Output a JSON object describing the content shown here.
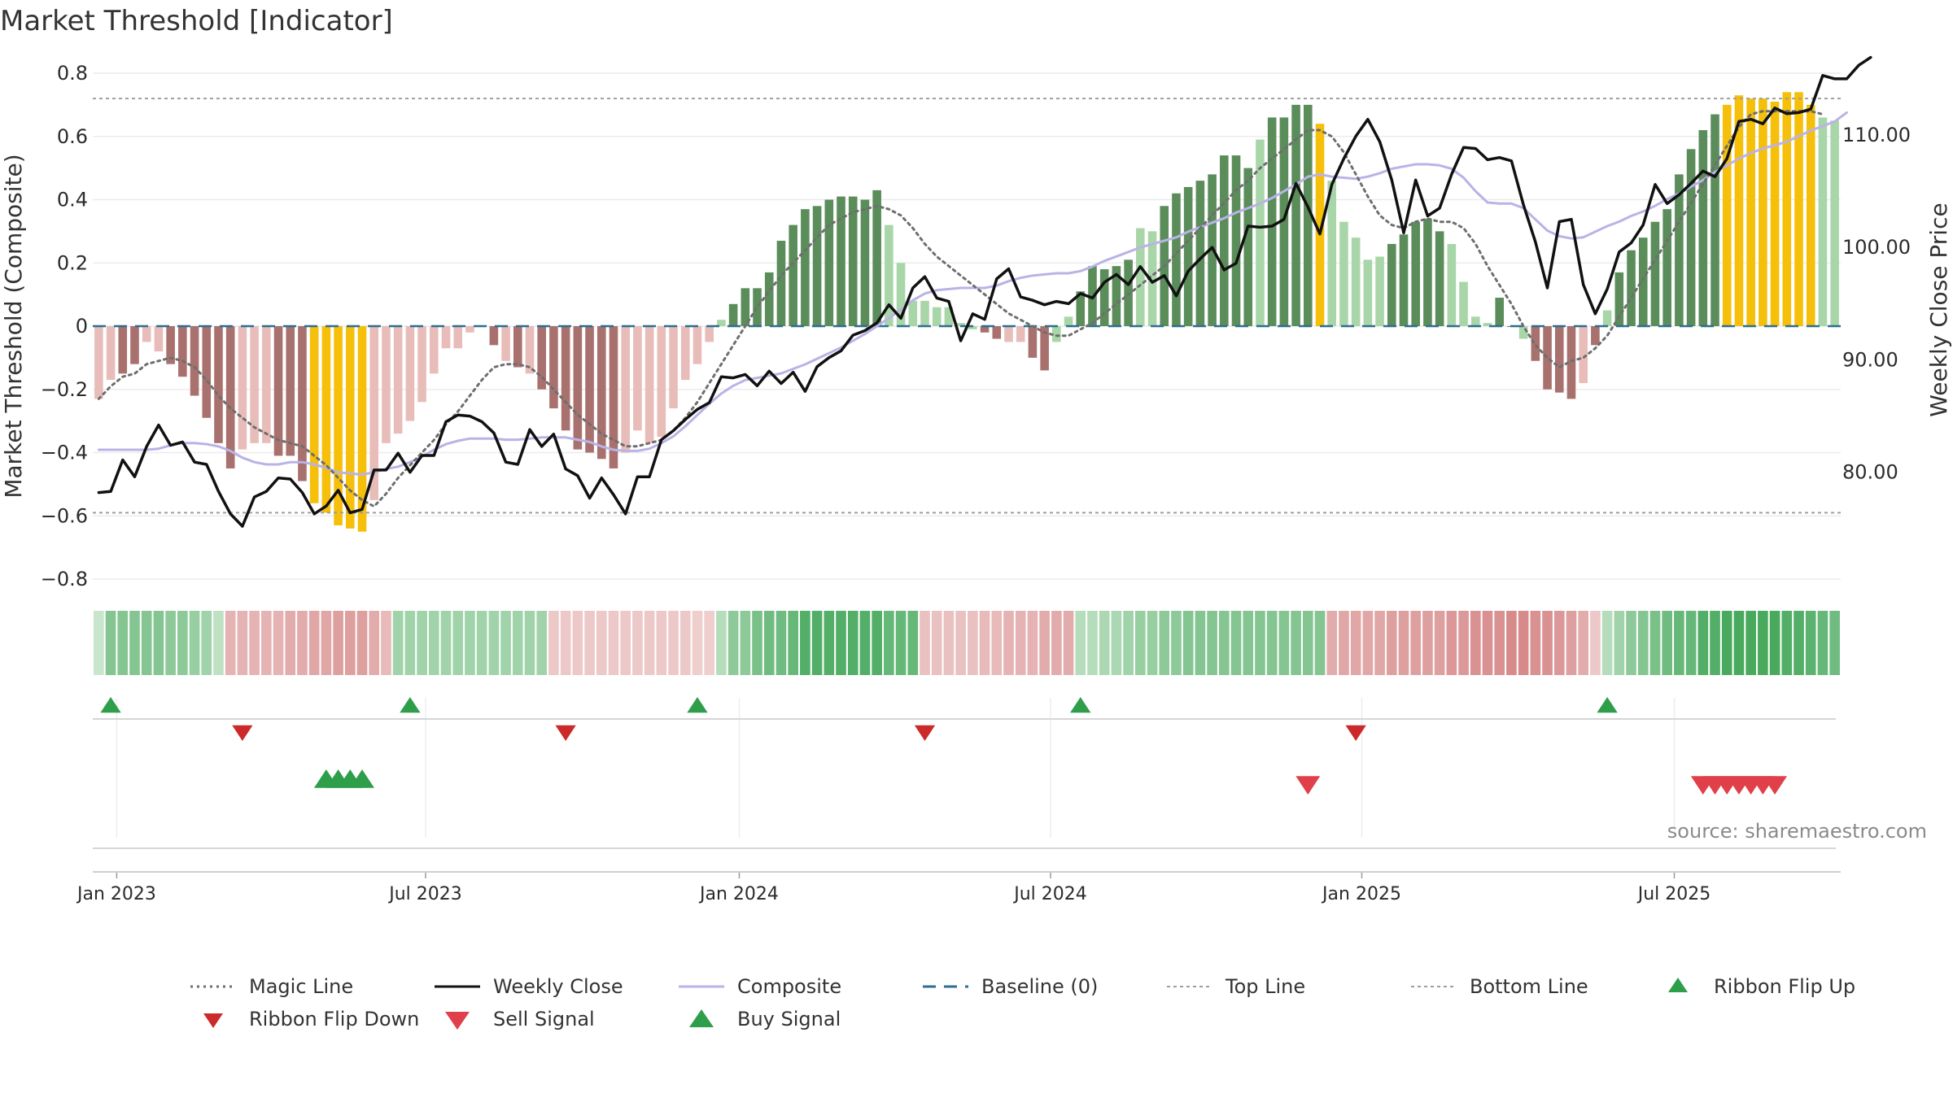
{
  "title": "Market Threshold [Indicator]",
  "source": "source: sharemaestro.com",
  "colors": {
    "magic": "#6e6e6e",
    "weekly_close": "#111111",
    "composite": "#b9b3e6",
    "baseline": "#2c6e8f",
    "top_line": "#9e9e9e",
    "bottom_line": "#9e9e9e",
    "pos_dark": "#5b8d5b",
    "pos_light": "#a9d6a9",
    "neg_dark": "#a8716e",
    "neg_light": "#e8bdb9",
    "extreme": "#f5bf0a",
    "flip_up": "#2e9e4a",
    "flip_down": "#cc2a2a",
    "sell": "#e0404a",
    "buy": "#2e9e4a"
  },
  "chart_data": {
    "type": "bar",
    "title": "Market Threshold [Indicator]",
    "ylabel_left": "Market Threshold (Composite)",
    "ylabel_right": "Weekly Close Price",
    "ylim_left": [
      -0.8,
      0.8
    ],
    "ylim_right": [
      70.5,
      115.5
    ],
    "left_ticks": [
      "0.8",
      "0.6",
      "0.4",
      "0.2",
      "0",
      "−0.2",
      "−0.4",
      "−0.6",
      "−0.8"
    ],
    "right_ticks": [
      "110.00",
      "100.00",
      "90.00",
      "80.00"
    ],
    "x_ticks": [
      "Jan 2023",
      "Jul 2023",
      "Jan 2024",
      "Jul 2024",
      "Jan 2025",
      "Jul 2025"
    ],
    "x_tick_weeks": [
      1.5,
      27.3,
      53.5,
      79.5,
      105.5,
      131.6
    ],
    "top_line": 0.72,
    "bottom_line": -0.59,
    "grid": true,
    "legend_position": "bottom",
    "composite_bars": [
      -0.23,
      -0.17,
      -0.15,
      -0.12,
      -0.05,
      -0.08,
      -0.12,
      -0.16,
      -0.22,
      -0.29,
      -0.37,
      -0.45,
      -0.39,
      -0.37,
      -0.37,
      -0.41,
      -0.41,
      -0.49,
      -0.56,
      -0.59,
      -0.63,
      -0.64,
      -0.65,
      -0.55,
      -0.37,
      -0.34,
      -0.3,
      -0.24,
      -0.15,
      -0.07,
      -0.07,
      -0.02,
      -0.0,
      -0.06,
      -0.11,
      -0.13,
      -0.15,
      -0.2,
      -0.26,
      -0.33,
      -0.39,
      -0.4,
      -0.42,
      -0.45,
      -0.4,
      -0.33,
      -0.37,
      -0.35,
      -0.26,
      -0.17,
      -0.12,
      -0.05,
      0.02,
      0.07,
      0.12,
      0.12,
      0.17,
      0.27,
      0.32,
      0.37,
      0.38,
      0.4,
      0.41,
      0.41,
      0.4,
      0.43,
      0.32,
      0.2,
      0.08,
      0.08,
      0.06,
      0.06,
      0.01,
      -0.01,
      -0.02,
      -0.04,
      -0.05,
      -0.05,
      -0.1,
      -0.14,
      -0.05,
      0.03,
      0.11,
      0.19,
      0.18,
      0.19,
      0.21,
      0.31,
      0.3,
      0.38,
      0.42,
      0.44,
      0.46,
      0.48,
      0.54,
      0.54,
      0.5,
      0.59,
      0.66,
      0.66,
      0.7,
      0.7,
      0.64,
      0.46,
      0.33,
      0.28,
      0.21,
      0.22,
      0.26,
      0.29,
      0.33,
      0.34,
      0.3,
      0.26,
      0.14,
      0.03,
      0.01,
      0.09,
      0.0,
      -0.04,
      -0.11,
      -0.2,
      -0.21,
      -0.23,
      -0.18,
      -0.06,
      0.05,
      0.17,
      0.24,
      0.28,
      0.33,
      0.37,
      0.48,
      0.56,
      0.62,
      0.67,
      0.7,
      0.73,
      0.72,
      0.72,
      0.71,
      0.74,
      0.74,
      0.7,
      0.66,
      0.65
    ],
    "bar_tones": [
      "nl",
      "nl",
      "nd",
      "nd",
      "nl",
      "nl",
      "nd",
      "nd",
      "nd",
      "nd",
      "nd",
      "nd",
      "nl",
      "nl",
      "nl",
      "nd",
      "nd",
      "nd",
      "ex",
      "ex",
      "ex",
      "ex",
      "ex",
      "nl",
      "nl",
      "nl",
      "nl",
      "nl",
      "nl",
      "nl",
      "nl",
      "nl",
      "nl",
      "nd",
      "nl",
      "nd",
      "nl",
      "nd",
      "nd",
      "nd",
      "nd",
      "nd",
      "nd",
      "nd",
      "nl",
      "nl",
      "nl",
      "nl",
      "nl",
      "nl",
      "nl",
      "nl",
      "pl",
      "pd",
      "pd",
      "pd",
      "pd",
      "pd",
      "pd",
      "pd",
      "pd",
      "pd",
      "pd",
      "pd",
      "pd",
      "pd",
      "pl",
      "pl",
      "pl",
      "pl",
      "pl",
      "pl",
      "pl",
      "pl",
      "nd",
      "nd",
      "nl",
      "nl",
      "nd",
      "nd",
      "pl",
      "pl",
      "pd",
      "pd",
      "pd",
      "pd",
      "pd",
      "pl",
      "pl",
      "pd",
      "pd",
      "pd",
      "pd",
      "pd",
      "pd",
      "pd",
      "pd",
      "pl",
      "pd",
      "pd",
      "pd",
      "pd",
      "ex",
      "pl",
      "pl",
      "pl",
      "pl",
      "pl",
      "pd",
      "pd",
      "pd",
      "pd",
      "pd",
      "pl",
      "pl",
      "pl",
      "pl",
      "pd",
      "pd",
      "pl",
      "nd",
      "nd",
      "nd",
      "nd",
      "nl",
      "nd",
      "pl",
      "pd",
      "pd",
      "pd",
      "pd",
      "pd",
      "pd",
      "pd",
      "pd",
      "pd",
      "ex",
      "ex",
      "ex",
      "ex",
      "ex",
      "ex",
      "ex",
      "ex",
      "pl",
      "pl",
      "pl"
    ],
    "series": [
      {
        "name": "Magic Line",
        "style": "dotted",
        "values": [
          -0.23,
          -0.19,
          -0.16,
          -0.15,
          -0.12,
          -0.11,
          -0.1,
          -0.11,
          -0.13,
          -0.17,
          -0.22,
          -0.26,
          -0.29,
          -0.32,
          -0.34,
          -0.36,
          -0.37,
          -0.38,
          -0.41,
          -0.44,
          -0.48,
          -0.52,
          -0.55,
          -0.57,
          -0.53,
          -0.48,
          -0.44,
          -0.4,
          -0.36,
          -0.31,
          -0.27,
          -0.22,
          -0.17,
          -0.13,
          -0.12,
          -0.12,
          -0.13,
          -0.16,
          -0.2,
          -0.24,
          -0.28,
          -0.31,
          -0.34,
          -0.36,
          -0.38,
          -0.38,
          -0.37,
          -0.36,
          -0.33,
          -0.29,
          -0.24,
          -0.18,
          -0.12,
          -0.06,
          0.0,
          0.06,
          0.11,
          0.16,
          0.2,
          0.24,
          0.28,
          0.32,
          0.34,
          0.36,
          0.37,
          0.38,
          0.37,
          0.35,
          0.31,
          0.26,
          0.22,
          0.19,
          0.16,
          0.13,
          0.1,
          0.07,
          0.04,
          0.02,
          0.0,
          -0.02,
          -0.03,
          -0.03,
          -0.01,
          0.01,
          0.04,
          0.07,
          0.1,
          0.13,
          0.16,
          0.19,
          0.23,
          0.27,
          0.31,
          0.35,
          0.39,
          0.43,
          0.46,
          0.5,
          0.53,
          0.56,
          0.59,
          0.62,
          0.62,
          0.6,
          0.55,
          0.48,
          0.41,
          0.35,
          0.32,
          0.31,
          0.33,
          0.34,
          0.33,
          0.33,
          0.31,
          0.26,
          0.19,
          0.13,
          0.07,
          0.0,
          -0.06,
          -0.1,
          -0.13,
          -0.11,
          -0.1,
          -0.07,
          -0.03,
          0.03,
          0.09,
          0.15,
          0.21,
          0.27,
          0.33,
          0.39,
          0.45,
          0.51,
          0.57,
          0.63,
          0.67,
          0.68,
          0.68,
          0.68,
          0.68,
          0.68,
          0.67
        ]
      },
      {
        "name": "Weekly Close",
        "axis": "right",
        "values": [
          78.2,
          78.3,
          81.1,
          79.6,
          82.3,
          84.2,
          82.4,
          82.7,
          80.9,
          80.7,
          78.3,
          76.3,
          75.2,
          77.8,
          78.3,
          79.5,
          79.4,
          78.2,
          76.3,
          77.0,
          78.4,
          76.4,
          76.7,
          80.2,
          80.2,
          81.7,
          80.0,
          81.5,
          81.5,
          84.5,
          85.1,
          85.0,
          84.5,
          83.5,
          80.9,
          80.7,
          83.8,
          82.3,
          83.4,
          80.3,
          79.7,
          77.7,
          79.5,
          78.0,
          76.3,
          79.6,
          79.6,
          82.9,
          83.7,
          84.7,
          85.6,
          86.2,
          88.5,
          88.4,
          88.7,
          87.7,
          89.0,
          87.9,
          88.9,
          87.2,
          89.4,
          90.2,
          90.8,
          92.2,
          92.6,
          93.3,
          94.9,
          93.7,
          96.4,
          97.4,
          95.5,
          95.2,
          91.7,
          94.1,
          93.6,
          97.2,
          98.1,
          95.6,
          95.3,
          94.9,
          95.2,
          95.0,
          95.9,
          95.5,
          96.9,
          97.6,
          96.7,
          98.3,
          96.9,
          97.5,
          95.7,
          97.9,
          99.0,
          100.0,
          98.0,
          98.6,
          101.9,
          101.8,
          101.9,
          102.5,
          105.7,
          103.6,
          101.2,
          105.6,
          107.9,
          109.9,
          111.4,
          109.4,
          106.0,
          101.3,
          106.0,
          102.8,
          103.5,
          106.5,
          108.9,
          108.8,
          107.8,
          108.0,
          107.7,
          103.8,
          100.5,
          96.4,
          102.3,
          102.5,
          96.7,
          94.1,
          96.3,
          99.6,
          100.4,
          102.0,
          105.6,
          103.9,
          104.7,
          105.7,
          106.8,
          106.3,
          107.9,
          111.2,
          111.4,
          111.0,
          112.4,
          111.9,
          112.0,
          112.3,
          115.3,
          115.0,
          115.0,
          116.2,
          116.9
        ]
      },
      {
        "name": "Composite",
        "axis": "right",
        "values": [
          82.0,
          82.0,
          82.0,
          82.0,
          82.0,
          82.1,
          82.4,
          82.6,
          82.6,
          82.5,
          82.3,
          81.9,
          81.3,
          80.9,
          80.7,
          80.7,
          80.9,
          80.9,
          80.7,
          80.4,
          80.0,
          79.9,
          79.8,
          80.0,
          80.3,
          80.5,
          80.9,
          81.4,
          82.0,
          82.5,
          82.8,
          83.0,
          83.0,
          83.0,
          82.9,
          82.9,
          83.0,
          83.1,
          83.1,
          83.1,
          82.9,
          82.7,
          82.3,
          82.0,
          81.9,
          81.9,
          82.1,
          82.6,
          83.2,
          84.1,
          85.1,
          86.1,
          87.0,
          87.7,
          88.2,
          88.4,
          88.6,
          88.8,
          89.2,
          89.6,
          90.1,
          90.6,
          91.1,
          91.7,
          92.3,
          93.0,
          93.7,
          94.5,
          95.3,
          95.9,
          96.2,
          96.3,
          96.4,
          96.4,
          96.4,
          96.6,
          97.0,
          97.3,
          97.5,
          97.6,
          97.7,
          97.7,
          97.9,
          98.3,
          98.8,
          99.2,
          99.6,
          100.0,
          100.3,
          100.6,
          100.9,
          101.4,
          101.8,
          102.2,
          102.6,
          103.1,
          103.5,
          103.9,
          104.4,
          105.0,
          105.6,
          106.3,
          106.5,
          106.3,
          106.2,
          106.1,
          106.3,
          106.6,
          107.0,
          107.2,
          107.4,
          107.4,
          107.3,
          107.0,
          106.2,
          105.0,
          104.0,
          103.9,
          103.9,
          103.5,
          102.5,
          101.5,
          101.0,
          100.8,
          100.9,
          101.4,
          101.9,
          102.3,
          102.8,
          103.2,
          103.7,
          104.3,
          104.8,
          105.4,
          106.0,
          106.7,
          107.3,
          107.9,
          108.4,
          108.8,
          109.1,
          109.4,
          109.9,
          110.4,
          110.8,
          111.2,
          112.0
        ]
      },
      {
        "name": "Baseline (0)",
        "style": "dashed",
        "value": 0
      },
      {
        "name": "Top Line",
        "style": "dotted",
        "value": 0.72
      },
      {
        "name": "Bottom Line",
        "style": "dotted",
        "value": -0.59
      }
    ],
    "ribbon": [
      0.1,
      0.45,
      0.45,
      0.45,
      0.45,
      0.45,
      0.4,
      0.4,
      0.35,
      0.3,
      0.15,
      -0.3,
      -0.3,
      -0.3,
      -0.3,
      -0.3,
      -0.35,
      -0.35,
      -0.4,
      -0.4,
      -0.45,
      -0.45,
      -0.45,
      -0.35,
      -0.25,
      0.3,
      0.3,
      0.3,
      0.3,
      0.3,
      0.3,
      0.3,
      0.3,
      0.3,
      0.3,
      0.3,
      0.3,
      0.3,
      -0.15,
      -0.15,
      -0.15,
      -0.15,
      -0.15,
      -0.15,
      -0.15,
      -0.15,
      -0.15,
      -0.15,
      -0.15,
      -0.15,
      -0.1,
      -0.1,
      0.2,
      0.4,
      0.4,
      0.5,
      0.55,
      0.55,
      0.6,
      0.7,
      0.7,
      0.7,
      0.7,
      0.7,
      0.7,
      0.7,
      0.6,
      0.6,
      0.6,
      -0.2,
      -0.2,
      -0.2,
      -0.2,
      -0.2,
      -0.25,
      -0.25,
      -0.3,
      -0.3,
      -0.3,
      -0.35,
      -0.35,
      -0.35,
      0.2,
      0.2,
      0.25,
      0.25,
      0.3,
      0.35,
      0.35,
      0.4,
      0.4,
      0.45,
      0.45,
      0.45,
      0.45,
      0.45,
      0.45,
      0.45,
      0.45,
      0.45,
      0.45,
      0.45,
      0.45,
      -0.35,
      -0.4,
      -0.4,
      -0.4,
      -0.4,
      -0.45,
      -0.45,
      -0.45,
      -0.45,
      -0.45,
      -0.5,
      -0.5,
      -0.55,
      -0.55,
      -0.55,
      -0.6,
      -0.6,
      -0.55,
      -0.55,
      -0.5,
      -0.45,
      -0.35,
      -0.15,
      0.2,
      0.3,
      0.4,
      0.45,
      0.5,
      0.55,
      0.6,
      0.6,
      0.7,
      0.7,
      0.75,
      0.75,
      0.75,
      0.75,
      0.75,
      0.7,
      0.7,
      0.65,
      0.6,
      0.55
    ],
    "ribbon_flip_up_weeks": [
      1,
      26,
      50,
      82,
      126
    ],
    "ribbon_flip_down_weeks": [
      12,
      39,
      69,
      105
    ],
    "buy_signal_weeks": [
      19,
      20,
      21,
      22
    ],
    "sell_signal_weeks": [
      101,
      134,
      135,
      136,
      137,
      138,
      139,
      140
    ],
    "legend": [
      "Magic Line",
      "Weekly Close",
      "Composite",
      "Baseline (0)",
      "Top Line",
      "Bottom Line",
      "Ribbon Flip Up",
      "Ribbon Flip Down",
      "Sell Signal",
      "Buy Signal"
    ]
  }
}
